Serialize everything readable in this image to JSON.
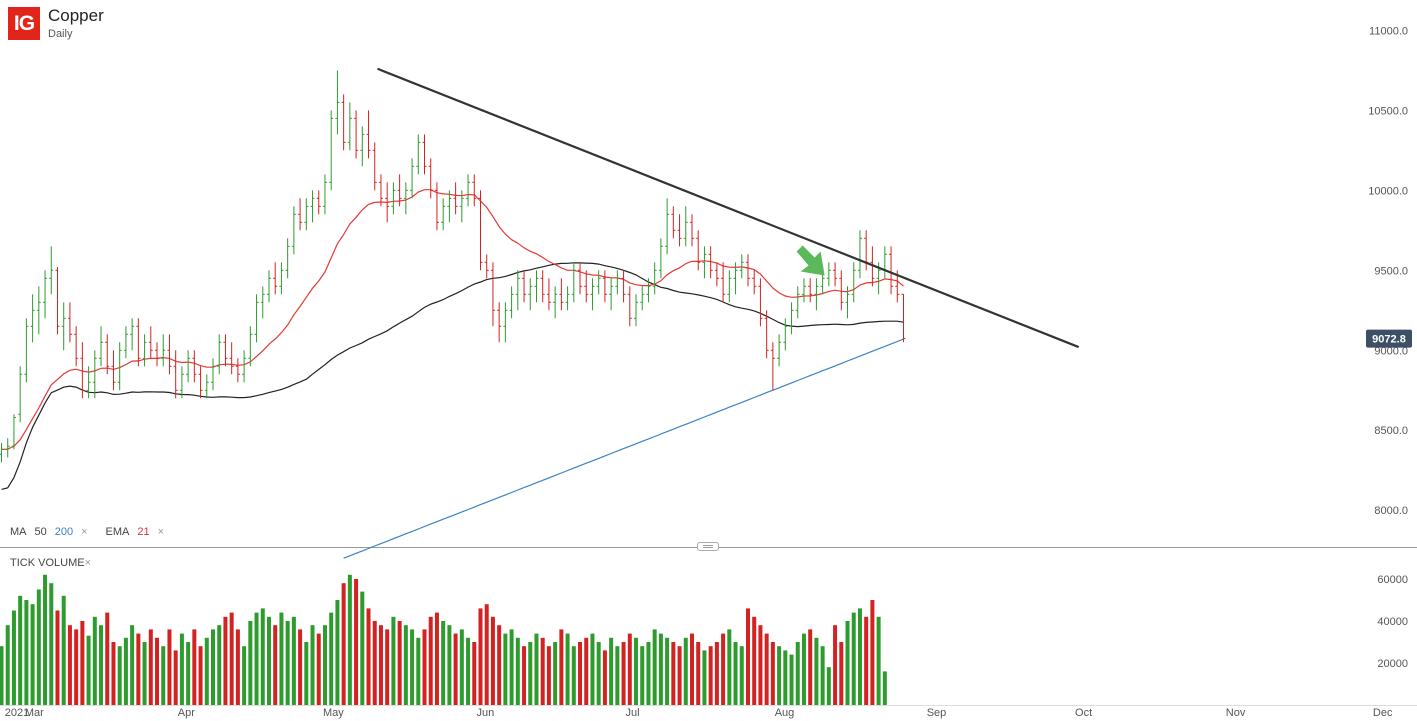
{
  "header": {
    "logo": "IG",
    "title": "Copper",
    "subtitle": "Daily"
  },
  "price_tag": "9072.8",
  "indicators": {
    "ma_label": "MA",
    "ma_p1": "50",
    "ma_p2": "200",
    "ema_label": "EMA",
    "ema_p": "21",
    "close_glyph": "×"
  },
  "volume": {
    "label": "TICK VOLUME",
    "close_glyph": "×"
  },
  "colors": {
    "up": "#2e9b2e",
    "down": "#d32222",
    "ma50": "#222222",
    "ma200": "#3a82c9",
    "ema21": "#e53935",
    "trendline": "#333333",
    "arrow": "#5bb85b",
    "price_tag_bg": "#3d4f66"
  },
  "chart_data": [
    {
      "type": "line",
      "title": "Copper",
      "subtitle": "Daily",
      "x_ticks": [
        "2021",
        "Mar",
        "Apr",
        "May",
        "Jun",
        "Jul",
        "Aug",
        "Sep",
        "Oct",
        "Nov",
        "Dec"
      ],
      "y_ticks": [
        "11000.0",
        "10500.0",
        "10000.0",
        "9500.0",
        "9000.0",
        "8500.0",
        "8000.0"
      ],
      "ylim": [
        7770,
        11190
      ],
      "xlim": [
        "2021-02-22",
        "2021-12-08"
      ],
      "ohlc": [
        [
          8350,
          8420,
          8300,
          8380
        ],
        [
          8380,
          8450,
          8330,
          8400
        ],
        [
          8400,
          8600,
          8380,
          8580
        ],
        [
          8600,
          8900,
          8550,
          8850
        ],
        [
          8850,
          9200,
          8800,
          9150
        ],
        [
          9150,
          9350,
          9050,
          9250
        ],
        [
          9250,
          9400,
          9100,
          9300
        ],
        [
          9300,
          9500,
          9200,
          9450
        ],
        [
          9450,
          9650,
          9350,
          9500
        ],
        [
          9500,
          9520,
          9100,
          9150
        ],
        [
          9150,
          9300,
          9000,
          9200
        ],
        [
          9200,
          9300,
          9050,
          9100
        ],
        [
          9100,
          9150,
          8900,
          8950
        ],
        [
          8950,
          9050,
          8700,
          8750
        ],
        [
          8750,
          8900,
          8700,
          8800
        ],
        [
          8800,
          9000,
          8700,
          8950
        ],
        [
          8950,
          9150,
          8900,
          9050
        ],
        [
          9050,
          9100,
          8850,
          8900
        ],
        [
          8900,
          9000,
          8750,
          8800
        ],
        [
          8800,
          9050,
          8750,
          9000
        ],
        [
          9000,
          9150,
          8950,
          9100
        ],
        [
          9100,
          9200,
          9000,
          9150
        ],
        [
          9150,
          9200,
          8900,
          8950
        ],
        [
          8950,
          9100,
          8900,
          9050
        ],
        [
          9050,
          9150,
          8950,
          9000
        ],
        [
          9000,
          9050,
          8900,
          8950
        ],
        [
          8950,
          9100,
          8900,
          9000
        ],
        [
          9000,
          9100,
          8850,
          8900
        ],
        [
          8900,
          9000,
          8700,
          8750
        ],
        [
          8750,
          8900,
          8700,
          8850
        ],
        [
          8850,
          9000,
          8800,
          8950
        ],
        [
          8950,
          9000,
          8800,
          8850
        ],
        [
          8850,
          8900,
          8700,
          8750
        ],
        [
          8750,
          8850,
          8700,
          8800
        ],
        [
          8800,
          8950,
          8750,
          8900
        ],
        [
          8900,
          9100,
          8850,
          9050
        ],
        [
          9050,
          9100,
          8900,
          8950
        ],
        [
          8950,
          9050,
          8850,
          8900
        ],
        [
          8900,
          8950,
          8800,
          8850
        ],
        [
          8850,
          9000,
          8800,
          8950
        ],
        [
          8950,
          9150,
          8900,
          9100
        ],
        [
          9100,
          9350,
          9050,
          9300
        ],
        [
          9300,
          9400,
          9200,
          9350
        ],
        [
          9350,
          9500,
          9300,
          9450
        ],
        [
          9450,
          9550,
          9350,
          9400
        ],
        [
          9400,
          9550,
          9350,
          9500
        ],
        [
          9500,
          9700,
          9450,
          9650
        ],
        [
          9650,
          9900,
          9600,
          9850
        ],
        [
          9850,
          9950,
          9750,
          9800
        ],
        [
          9800,
          9950,
          9750,
          9900
        ],
        [
          9900,
          10000,
          9800,
          9950
        ],
        [
          9950,
          10000,
          9850,
          9900
        ],
        [
          9900,
          10100,
          9850,
          10050
        ],
        [
          10050,
          10500,
          10000,
          10450
        ],
        [
          10450,
          10750,
          10350,
          10550
        ],
        [
          10550,
          10600,
          10250,
          10300
        ],
        [
          10300,
          10550,
          10250,
          10450
        ],
        [
          10450,
          10500,
          10200,
          10250
        ],
        [
          10250,
          10400,
          10150,
          10350
        ],
        [
          10350,
          10500,
          10200,
          10250
        ],
        [
          10250,
          10300,
          10000,
          10050
        ],
        [
          10050,
          10100,
          9900,
          9950
        ],
        [
          9950,
          10050,
          9800,
          9900
        ],
        [
          9900,
          10050,
          9850,
          10000
        ],
        [
          10000,
          10100,
          9900,
          9950
        ],
        [
          9950,
          10050,
          9850,
          10000
        ],
        [
          10000,
          10200,
          9950,
          10150
        ],
        [
          10150,
          10350,
          10100,
          10300
        ],
        [
          10300,
          10350,
          10100,
          10150
        ],
        [
          10150,
          10200,
          9950,
          10000
        ],
        [
          10000,
          10050,
          9750,
          9800
        ],
        [
          9800,
          9950,
          9750,
          9900
        ],
        [
          9900,
          10000,
          9800,
          9950
        ],
        [
          9950,
          10050,
          9850,
          9900
        ],
        [
          9900,
          10000,
          9800,
          9950
        ],
        [
          9950,
          10100,
          9900,
          10050
        ],
        [
          10050,
          10100,
          9900,
          9950
        ],
        [
          9950,
          10000,
          9500,
          9550
        ],
        [
          9550,
          9600,
          9450,
          9500
        ],
        [
          9500,
          9550,
          9150,
          9250
        ],
        [
          9250,
          9300,
          9050,
          9150
        ],
        [
          9150,
          9300,
          9050,
          9250
        ],
        [
          9250,
          9400,
          9200,
          9350
        ],
        [
          9350,
          9500,
          9250,
          9450
        ],
        [
          9450,
          9500,
          9300,
          9350
        ],
        [
          9350,
          9450,
          9250,
          9400
        ],
        [
          9400,
          9500,
          9300,
          9450
        ],
        [
          9450,
          9500,
          9300,
          9350
        ],
        [
          9350,
          9450,
          9250,
          9300
        ],
        [
          9300,
          9400,
          9200,
          9350
        ],
        [
          9350,
          9450,
          9250,
          9300
        ],
        [
          9300,
          9400,
          9250,
          9350
        ],
        [
          9350,
          9550,
          9300,
          9500
        ],
        [
          9500,
          9550,
          9350,
          9400
        ],
        [
          9400,
          9500,
          9300,
          9350
        ],
        [
          9350,
          9450,
          9250,
          9400
        ],
        [
          9400,
          9500,
          9350,
          9450
        ],
        [
          9450,
          9500,
          9300,
          9350
        ],
        [
          9350,
          9450,
          9250,
          9400
        ],
        [
          9400,
          9500,
          9350,
          9450
        ],
        [
          9450,
          9500,
          9300,
          9350
        ],
        [
          9350,
          9400,
          9150,
          9200
        ],
        [
          9200,
          9350,
          9150,
          9300
        ],
        [
          9300,
          9400,
          9250,
          9350
        ],
        [
          9350,
          9450,
          9300,
          9400
        ],
        [
          9400,
          9550,
          9350,
          9500
        ],
        [
          9500,
          9700,
          9450,
          9650
        ],
        [
          9650,
          9950,
          9600,
          9850
        ],
        [
          9850,
          9900,
          9700,
          9750
        ],
        [
          9750,
          9850,
          9650,
          9700
        ],
        [
          9700,
          9900,
          9650,
          9800
        ],
        [
          9800,
          9850,
          9650,
          9700
        ],
        [
          9700,
          9750,
          9500,
          9550
        ],
        [
          9550,
          9650,
          9450,
          9600
        ],
        [
          9600,
          9650,
          9450,
          9500
        ],
        [
          9500,
          9550,
          9400,
          9450
        ],
        [
          9450,
          9550,
          9300,
          9350
        ],
        [
          9350,
          9500,
          9300,
          9450
        ],
        [
          9450,
          9550,
          9350,
          9500
        ],
        [
          9500,
          9600,
          9450,
          9550
        ],
        [
          9550,
          9600,
          9400,
          9450
        ],
        [
          9450,
          9500,
          9350,
          9400
        ],
        [
          9400,
          9450,
          9150,
          9200
        ],
        [
          9200,
          9250,
          8950,
          9000
        ],
        [
          9000,
          9050,
          8750,
          8950
        ],
        [
          8950,
          9100,
          8900,
          9050
        ],
        [
          9050,
          9200,
          9000,
          9150
        ],
        [
          9150,
          9300,
          9100,
          9250
        ],
        [
          9250,
          9400,
          9200,
          9350
        ],
        [
          9350,
          9450,
          9300,
          9400
        ],
        [
          9400,
          9450,
          9300,
          9350
        ],
        [
          9350,
          9450,
          9250,
          9400
        ],
        [
          9400,
          9500,
          9350,
          9450
        ],
        [
          9450,
          9550,
          9400,
          9500
        ],
        [
          9500,
          9550,
          9400,
          9450
        ],
        [
          9450,
          9500,
          9250,
          9300
        ],
        [
          9300,
          9400,
          9200,
          9350
        ],
        [
          9350,
          9550,
          9300,
          9500
        ],
        [
          9500,
          9750,
          9450,
          9700
        ],
        [
          9700,
          9750,
          9500,
          9550
        ],
        [
          9550,
          9650,
          9400,
          9450
        ],
        [
          9450,
          9550,
          9350,
          9500
        ],
        [
          9500,
          9650,
          9450,
          9600
        ],
        [
          9600,
          9650,
          9350,
          9400
        ],
        [
          9400,
          9500,
          9300,
          9350
        ],
        [
          9350,
          9350,
          9050,
          9073
        ]
      ],
      "volume": [
        28,
        38,
        45,
        52,
        50,
        48,
        55,
        62,
        58,
        45,
        52,
        38,
        36,
        40,
        33,
        42,
        38,
        44,
        30,
        28,
        32,
        38,
        34,
        30,
        36,
        32,
        28,
        36,
        26,
        34,
        30,
        36,
        28,
        32,
        36,
        38,
        42,
        44,
        36,
        28,
        40,
        44,
        46,
        42,
        38,
        44,
        40,
        42,
        36,
        30,
        38,
        34,
        38,
        44,
        50,
        58,
        62,
        60,
        54,
        46,
        40,
        38,
        36,
        42,
        40,
        38,
        36,
        32,
        36,
        42,
        44,
        40,
        38,
        34,
        36,
        32,
        30,
        46,
        48,
        42,
        38,
        34,
        36,
        32,
        28,
        30,
        34,
        32,
        28,
        30,
        36,
        34,
        28,
        30,
        32,
        34,
        30,
        26,
        32,
        28,
        30,
        34,
        32,
        28,
        30,
        36,
        34,
        32,
        30,
        28,
        32,
        34,
        30,
        26,
        28,
        30,
        34,
        36,
        30,
        28,
        46,
        42,
        38,
        34,
        30,
        28,
        26,
        24,
        30,
        34,
        36,
        32,
        28,
        18,
        38,
        30,
        40,
        44,
        46,
        42,
        50,
        42,
        16
      ],
      "volume_yticks": [
        "60000",
        "40000",
        "20000"
      ],
      "series": [
        {
          "label": "MA",
          "period": "50"
        },
        {
          "label": "MA",
          "period": "200"
        },
        {
          "label": "EMA",
          "period": "21"
        }
      ],
      "trendline": {
        "start": [
          "2021-05-10",
          10760
        ],
        "end": [
          "2021-09-30",
          9020
        ]
      },
      "last_price": 9072.8
    }
  ]
}
